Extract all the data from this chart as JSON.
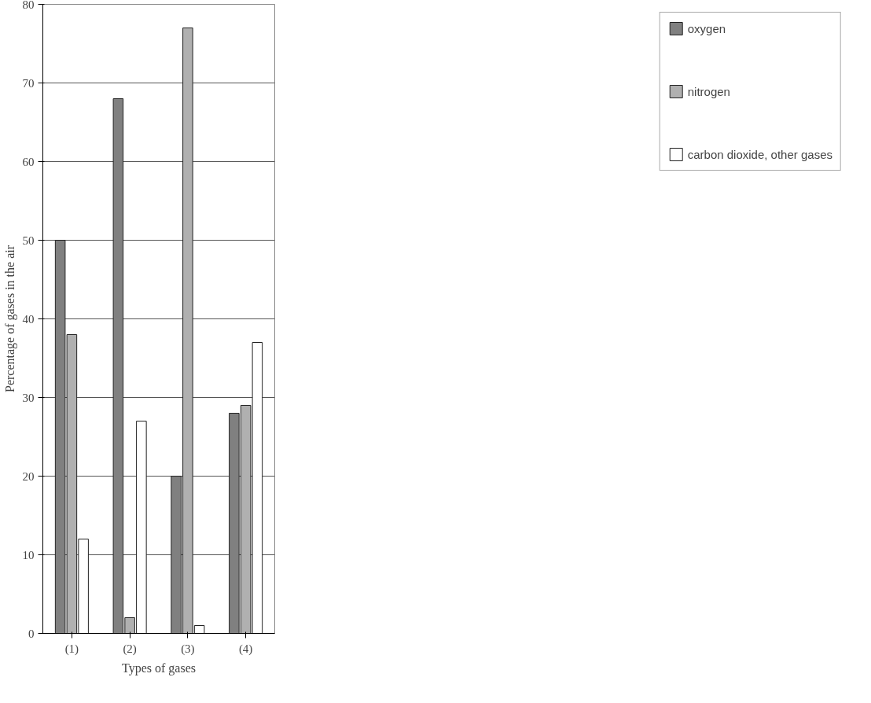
{
  "chart_data": {
    "type": "bar",
    "xlabel": "Types of gases",
    "ylabel": "Percentage of gases in the air",
    "categories": [
      "(1)",
      "(2)",
      "(3)",
      "(4)"
    ],
    "series": [
      {
        "name": "oxygen",
        "color": "#808080",
        "values": [
          50,
          68,
          20,
          28
        ]
      },
      {
        "name": "nitrogen",
        "color": "#b0b0b0",
        "values": [
          38,
          2,
          77,
          29
        ]
      },
      {
        "name": "carbon dioxide, other gases",
        "color": "#ffffff",
        "values": [
          12,
          27,
          1,
          37
        ]
      }
    ],
    "ylim": [
      0,
      80
    ],
    "yticks": [
      0,
      10,
      20,
      30,
      40,
      50,
      60,
      70,
      80
    ],
    "grid": "y",
    "legend": "right"
  }
}
